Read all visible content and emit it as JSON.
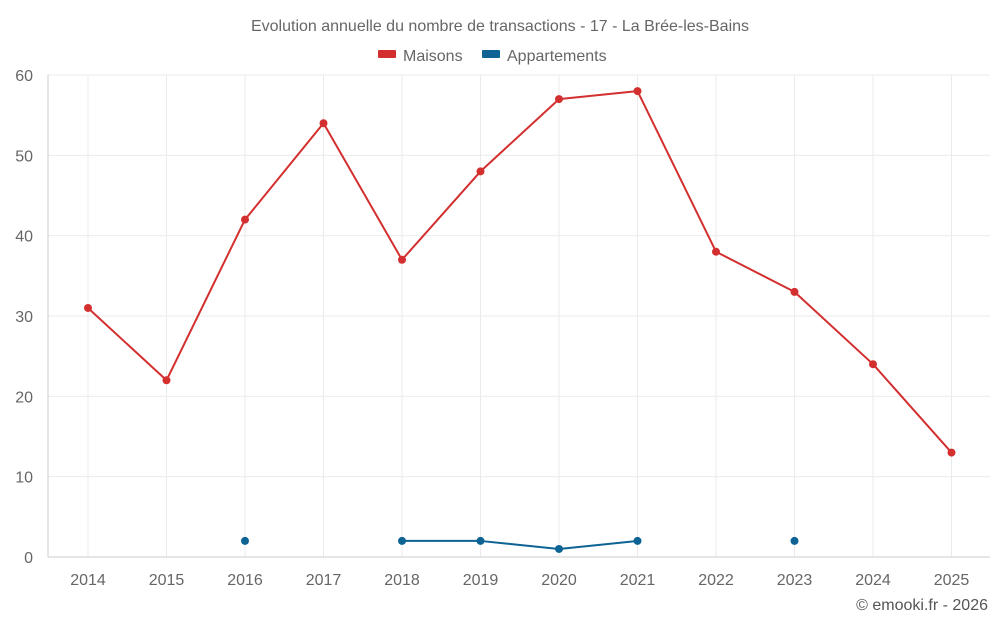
{
  "chart_data": {
    "type": "line",
    "title": "Evolution annuelle du nombre de transactions - 17 - La Brée-les-Bains",
    "categories": [
      "2014",
      "2015",
      "2016",
      "2017",
      "2018",
      "2019",
      "2020",
      "2021",
      "2022",
      "2023",
      "2024",
      "2025"
    ],
    "ylim": [
      0,
      60
    ],
    "yticks": [
      0,
      10,
      20,
      30,
      40,
      50,
      60
    ],
    "grid": true,
    "legend_position": "top-center",
    "series": [
      {
        "name": "Maisons",
        "color": "#d32f2f",
        "values": [
          31,
          22,
          42,
          54,
          37,
          48,
          57,
          58,
          38,
          33,
          24,
          13
        ]
      },
      {
        "name": "Appartements",
        "color": "#0d6394",
        "values": [
          null,
          null,
          2,
          null,
          2,
          2,
          1,
          2,
          null,
          2,
          null,
          null
        ]
      }
    ]
  },
  "credit": "© emooki.fr - 2026"
}
